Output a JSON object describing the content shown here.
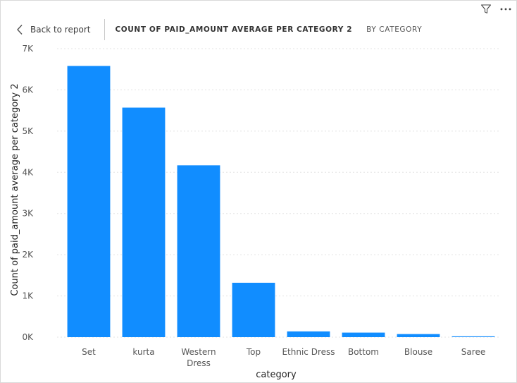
{
  "header": {
    "back_label": "Back to report",
    "title": "COUNT OF PAID_AMOUNT AVERAGE PER CATEGORY 2",
    "subtitle": "BY CATEGORY"
  },
  "toolbar": {
    "filter_icon": "filter-icon",
    "more_icon": "more-options-icon"
  },
  "colors": {
    "bar": "#118DFF",
    "grid": "#e3e3e3"
  },
  "chart_data": {
    "type": "bar",
    "xlabel": "category",
    "ylabel": "Count of paid_amount average per category 2",
    "ylim": [
      0,
      7000
    ],
    "yticks": [
      0,
      1000,
      2000,
      3000,
      4000,
      5000,
      6000,
      7000
    ],
    "ytick_labels": [
      "0K",
      "1K",
      "2K",
      "3K",
      "4K",
      "5K",
      "6K",
      "7K"
    ],
    "grid": true,
    "categories": [
      "Set",
      "kurta",
      "Western Dress",
      "Top",
      "Ethnic Dress",
      "Bottom",
      "Blouse",
      "Saree"
    ],
    "category_label_lines": [
      [
        "Set"
      ],
      [
        "kurta"
      ],
      [
        "Western",
        "Dress"
      ],
      [
        "Top"
      ],
      [
        "Ethnic Dress"
      ],
      [
        "Bottom"
      ],
      [
        "Blouse"
      ],
      [
        "Saree"
      ]
    ],
    "values": [
      6580,
      5570,
      4170,
      1320,
      140,
      110,
      75,
      20
    ]
  }
}
